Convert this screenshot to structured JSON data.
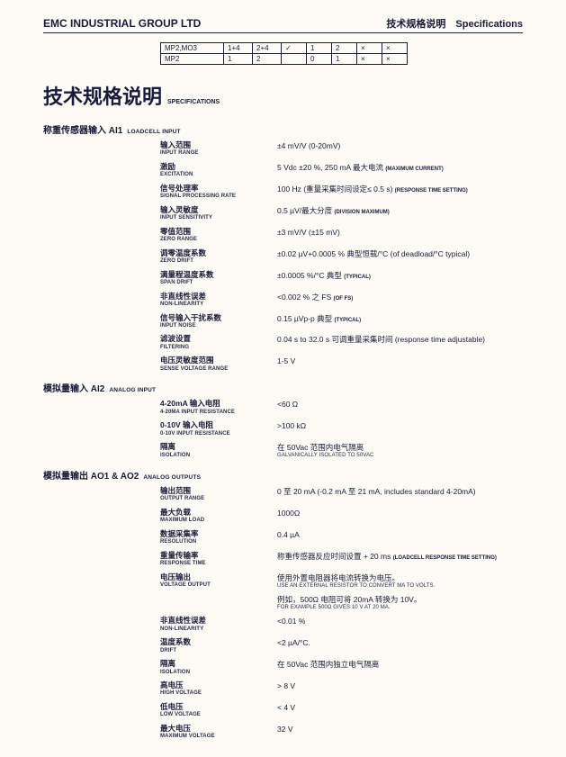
{
  "header": {
    "company": "EMC INDUSTRIAL GROUP LTD",
    "right_cn": "技术规格说明",
    "right_en": "Specifications"
  },
  "topTable": {
    "r1": [
      "MP2,MO3",
      "1+4",
      "2+4",
      "✓",
      "1",
      "2",
      "×",
      "×"
    ],
    "r2": [
      "MP2",
      "1",
      "2",
      "",
      "0",
      "1",
      "×",
      "×"
    ]
  },
  "title": {
    "cn": "技术规格说明",
    "en": "Specifications"
  },
  "ai1": {
    "section_cn": "称重传感器输入  AI1",
    "section_en": "Loadcell Input",
    "rows": [
      {
        "lcn": "输入范围",
        "len": "Input Range",
        "vcn": "±4 mV/V (0-20mV)"
      },
      {
        "lcn": "激励",
        "len": "Excitation",
        "vcn": "5 Vdc ±20 %, 250 mA 最大电流  ",
        "anno": "(maximum current)"
      },
      {
        "lcn": "信号处理率",
        "len": "Signal processing rate",
        "vcn": "100 Hz (重量采集时间设定≤ 0.5 s)  ",
        "anno": "(response time setting)"
      },
      {
        "lcn": "输入灵敏度",
        "len": "Input sensitivity",
        "vcn": "0.5 µV/最大分度  ",
        "anno": "(division maximum)"
      },
      {
        "lcn": "零值范围",
        "len": "Zero range",
        "vcn": "±3 mV/V (±15 mV)"
      },
      {
        "lcn": "调零温度系数",
        "len": "Zero drift",
        "vcn": "±0.02 µV+0.0005 % 典型恒载/°C   (of deadload/°C typical)"
      },
      {
        "lcn": "满量程温度系数",
        "len": "Span drift",
        "vcn": "±0.0005 %/°C 典型  ",
        "anno": "(typical)"
      },
      {
        "lcn": "非直线性误差",
        "len": "Non-linearity",
        "vcn": "<0.002 % 之 FS  ",
        "anno": "(of FS)"
      },
      {
        "lcn": "信号输入干扰系数",
        "len": "Input noise",
        "vcn": "0.15 µVp-p 典型  ",
        "anno": "(typical)"
      },
      {
        "lcn": "滤波设置",
        "len": "Filtering",
        "vcn": "0.04 s to 32.0 s 可调重量采集时间   (response time adjustable)"
      },
      {
        "lcn": "电压灵敏度范围",
        "len": "Sense voltage range",
        "vcn": "1-5 V"
      }
    ]
  },
  "ai2": {
    "section_cn": "模拟量输入  AI2",
    "section_en": "Analog Input",
    "rows": [
      {
        "lcn": "4-20mA 输入电阻",
        "len": "4-20mA input resistance",
        "vcn": "<60 Ω"
      },
      {
        "lcn": "0-10V 输入电阻",
        "len": "0-10V input resistance",
        "vcn": ">100 kΩ"
      },
      {
        "lcn": "隔离",
        "len": "Isolation",
        "vcn": "在 50Vac 范围内电气隔离",
        "ven": "Galvanically isolated to 50Vac"
      }
    ]
  },
  "ao": {
    "section_cn": "模拟量输出   AO1 & AO2",
    "section_en": "Analog Outputs",
    "rows": [
      {
        "lcn": "输出范围",
        "len": "Output range",
        "vcn": "0 至 20 mA (-0.2 mA 至 21 mA, includes standard 4-20mA)"
      },
      {
        "lcn": "最大负载",
        "len": "Maximum load",
        "vcn": "1000Ω"
      },
      {
        "lcn": "数据采集率",
        "len": "Resolution",
        "vcn": "0.4 µA"
      },
      {
        "lcn": "重量传输率",
        "len": "Response time",
        "vcn": "称重传感器反应时间设置 + 20 ms  ",
        "anno": "(loadcell response time setting)"
      },
      {
        "lcn": "电压输出",
        "len": "Voltage output",
        "vcn": "使用外置电阻器将电流转换为电压。",
        "ven": "Use an external resistor to convert mA to volts.",
        "vcn2": "例如，500Ω 电阻可将 20mA 转换为 10V。",
        "ven2": "For example 500Ω gives 10 V at 20 mA."
      },
      {
        "lcn": "非直线性误差",
        "len": "Non-linearity",
        "vcn": "<0.01 %"
      },
      {
        "lcn": "温度系数",
        "len": "Drift",
        "vcn": "<2 µA/°C."
      },
      {
        "lcn": "隔离",
        "len": "Isolation",
        "vcn": "在 50Vac 范围内独立电气隔离"
      },
      {
        "lcn": "高电压",
        "len": "High voltage",
        "vcn": "> 8 V"
      },
      {
        "lcn": "低电压",
        "len": "Low voltage",
        "vcn": "< 4 V"
      },
      {
        "lcn": "最大电压",
        "len": "Maximum voltage",
        "vcn": "32 V"
      }
    ]
  }
}
